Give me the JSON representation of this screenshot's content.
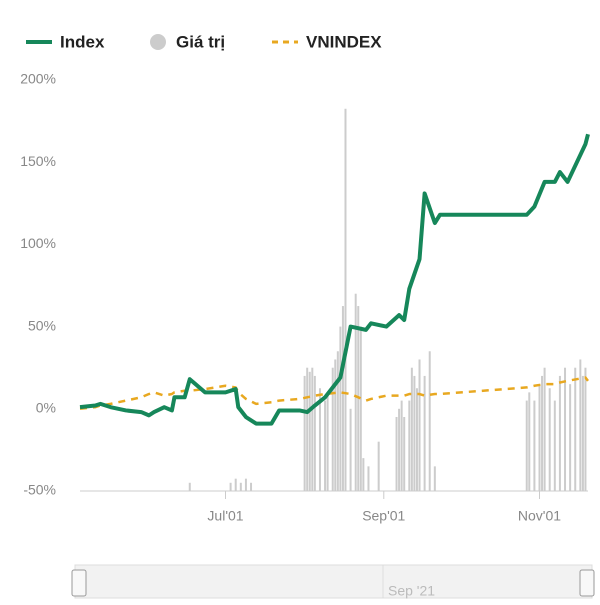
{
  "chart_data": {
    "type": "line",
    "xlim": [
      0,
      199
    ],
    "xticks": [
      {
        "value": 57,
        "label": "Jul'01"
      },
      {
        "value": 119,
        "label": "Sep'01"
      },
      {
        "value": 180,
        "label": "Nov'01"
      }
    ],
    "ylim": [
      -50,
      200
    ],
    "yticks": [
      {
        "value": -50,
        "label": "-50%"
      },
      {
        "value": 0,
        "label": "0%"
      },
      {
        "value": 50,
        "label": "50%"
      },
      {
        "value": 100,
        "label": "100%"
      },
      {
        "value": 150,
        "label": "150%"
      },
      {
        "value": 200,
        "label": "200%"
      }
    ],
    "y2lim": [
      0,
      100
    ],
    "grid": false,
    "legend": "top-left",
    "x": [
      0,
      6,
      8,
      12,
      18,
      24,
      27,
      29,
      33,
      36,
      37,
      41,
      43,
      49,
      57,
      61,
      62,
      65,
      69,
      75,
      78,
      86,
      89,
      92,
      96,
      102,
      106,
      112,
      114,
      120,
      125,
      127,
      129,
      133,
      135,
      139,
      141,
      175,
      178,
      182,
      186,
      188,
      191,
      198,
      199
    ],
    "series": [
      {
        "name": "Index",
        "color": "#16875a",
        "values": [
          1,
          2,
          3,
          1,
          -1,
          -2,
          -4,
          -2,
          1,
          -1,
          7,
          7,
          18,
          10,
          10,
          12,
          1,
          -5,
          -9,
          -9,
          -1,
          -1,
          -2,
          2,
          7,
          19,
          50,
          48,
          52,
          50,
          57,
          54,
          73,
          91,
          131,
          113,
          118,
          118,
          123,
          138,
          138,
          144,
          138,
          161,
          167
        ]
      },
      {
        "name": "Giá trị",
        "color": "#cccccc",
        "axis": "y2",
        "x": [
          43,
          59,
          61,
          63,
          65,
          67,
          88,
          89,
          90,
          91,
          92,
          94,
          96,
          97,
          99,
          100,
          101,
          102,
          103,
          104,
          106,
          108,
          109,
          110,
          111,
          113,
          117,
          124,
          125,
          126,
          127,
          129,
          130,
          131,
          132,
          133,
          135,
          137,
          139,
          175,
          176,
          178,
          180,
          181,
          182,
          184,
          186,
          188,
          190,
          192,
          194,
          196,
          197,
          198
        ],
        "values": [
          2,
          2,
          3,
          2,
          3,
          2,
          28,
          30,
          29,
          30,
          28,
          25,
          22,
          24,
          30,
          32,
          34,
          40,
          45,
          93,
          20,
          48,
          45,
          40,
          8,
          6,
          12,
          18,
          20,
          22,
          18,
          22,
          30,
          28,
          25,
          32,
          28,
          34,
          6,
          22,
          24,
          22,
          26,
          28,
          30,
          25,
          22,
          28,
          30,
          26,
          30,
          32,
          28,
          30
        ]
      },
      {
        "name": "VNINDEX",
        "color": "#e8a820",
        "values": [
          0,
          1,
          2,
          3,
          5,
          7,
          9,
          10,
          8,
          9,
          10,
          11,
          11,
          12,
          14,
          13,
          10,
          6,
          3,
          4,
          5,
          6,
          7,
          8,
          9,
          10,
          9,
          5,
          6,
          8,
          8,
          8,
          9,
          9,
          8,
          9,
          9,
          13,
          14,
          15,
          15,
          16,
          17,
          19,
          17
        ]
      }
    ],
    "navigator_label": "Sep '21"
  }
}
